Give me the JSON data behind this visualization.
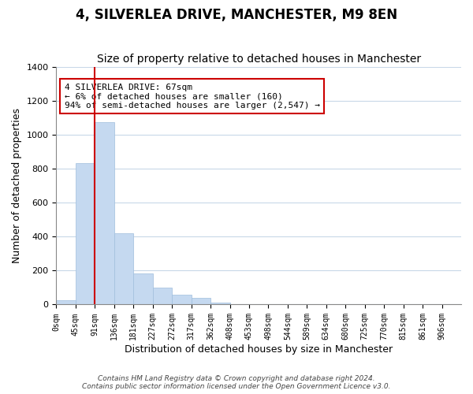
{
  "title": "4, SILVERLEA DRIVE, MANCHESTER, M9 8EN",
  "subtitle": "Size of property relative to detached houses in Manchester",
  "xlabel": "Distribution of detached houses by size in Manchester",
  "ylabel": "Number of detached properties",
  "bin_labels": [
    "0sqm",
    "45sqm",
    "91sqm",
    "136sqm",
    "181sqm",
    "227sqm",
    "272sqm",
    "317sqm",
    "362sqm",
    "408sqm",
    "453sqm",
    "498sqm",
    "544sqm",
    "589sqm",
    "634sqm",
    "680sqm",
    "725sqm",
    "770sqm",
    "815sqm",
    "861sqm",
    "906sqm"
  ],
  "bar_heights": [
    25,
    830,
    1075,
    420,
    182,
    100,
    57,
    37,
    10,
    0,
    0,
    0,
    0,
    0,
    0,
    0,
    0,
    0,
    0,
    0
  ],
  "bar_color": "#c5d9f0",
  "bar_edge_color": "#a0bedd",
  "vline_x": 1.5,
  "vline_color": "#cc0000",
  "annotation_title": "4 SILVERLEA DRIVE: 67sqm",
  "annotation_line1": "← 6% of detached houses are smaller (160)",
  "annotation_line2": "94% of semi-detached houses are larger (2,547) →",
  "annotation_box_color": "#ffffff",
  "annotation_box_edge": "#cc0000",
  "ylim": [
    0,
    1400
  ],
  "yticks": [
    0,
    200,
    400,
    600,
    800,
    1000,
    1200,
    1400
  ],
  "footer_line1": "Contains HM Land Registry data © Crown copyright and database right 2024.",
  "footer_line2": "Contains public sector information licensed under the Open Government Licence v3.0.",
  "background_color": "#ffffff",
  "grid_color": "#c8d8e8",
  "title_fontsize": 12,
  "subtitle_fontsize": 10,
  "xlabel_fontsize": 9,
  "ylabel_fontsize": 9
}
